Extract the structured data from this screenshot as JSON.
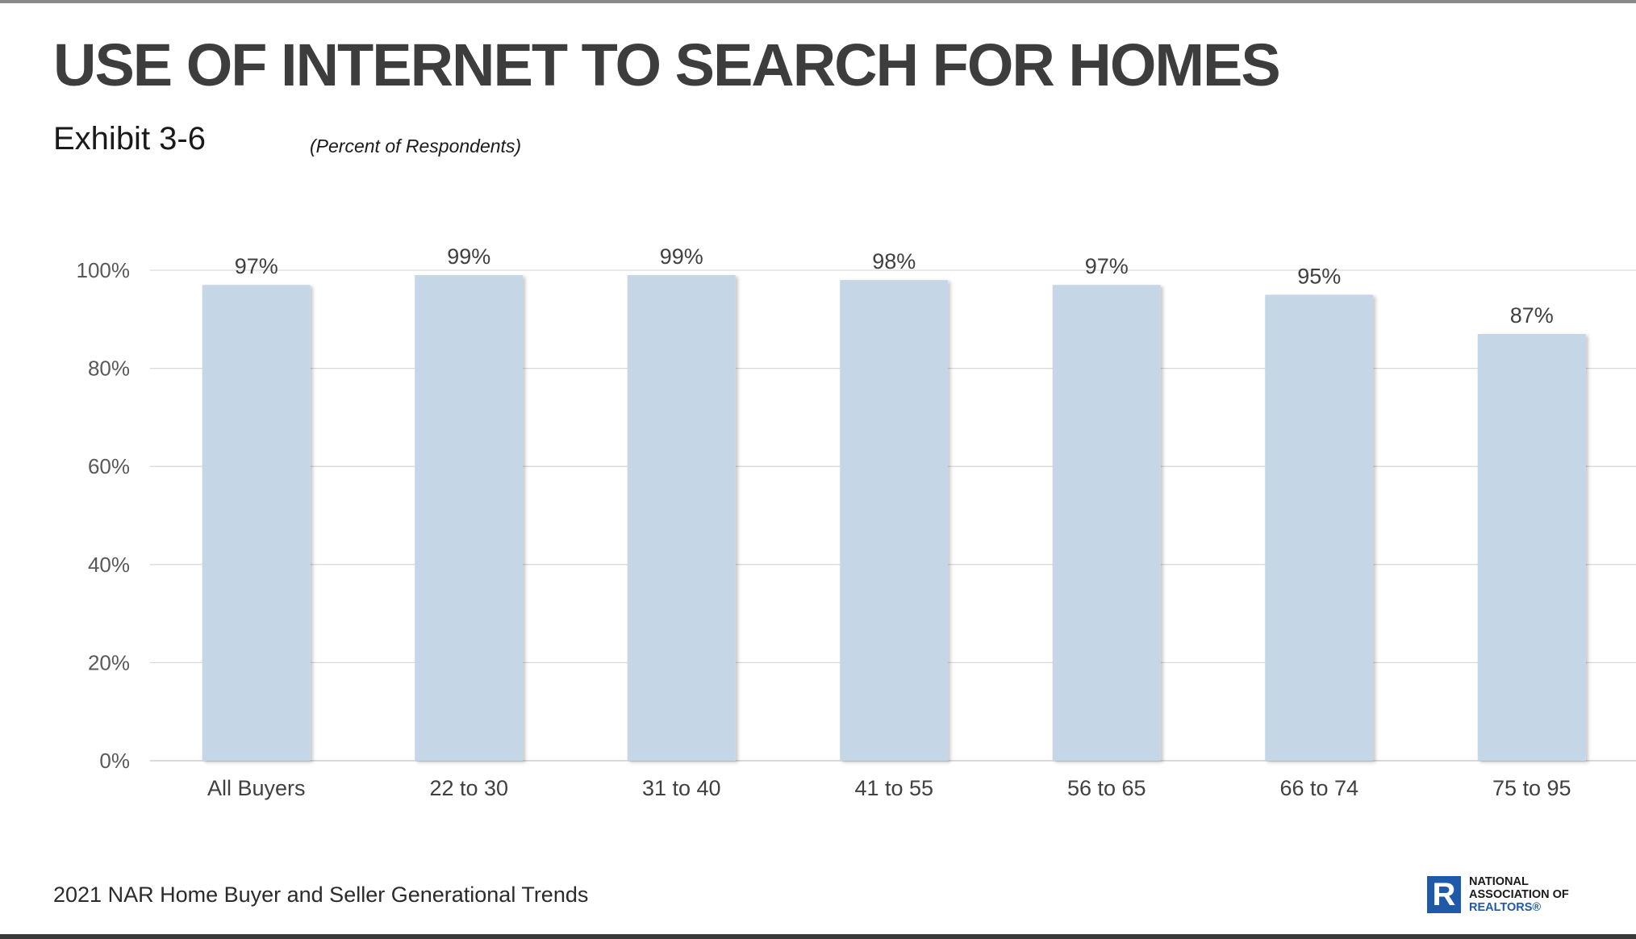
{
  "title": "USE OF INTERNET TO SEARCH FOR HOMES",
  "exhibit": "Exhibit 3-6",
  "subtitle": "(Percent of Respondents)",
  "footer": "2021 NAR Home Buyer and Seller Generational Trends",
  "logo": {
    "mark": "R",
    "line1": "NATIONAL",
    "line2": "ASSOCIATION OF",
    "line3": "REALTORS®",
    "color": "#1f5aa8"
  },
  "colors": {
    "bar": "#c5d6e7",
    "grid": "#d9d9d9",
    "axis_text": "#595959",
    "label_text": "#404040"
  },
  "chart_data": {
    "type": "bar",
    "title": "USE OF INTERNET TO SEARCH FOR HOMES",
    "categories": [
      "All Buyers",
      "22 to 30",
      "31 to 40",
      "41 to 55",
      "56 to 65",
      "66 to 74",
      "75 to 95"
    ],
    "values": [
      97,
      99,
      99,
      98,
      97,
      95,
      87
    ],
    "value_labels": [
      "97%",
      "99%",
      "99%",
      "98%",
      "97%",
      "95%",
      "87%"
    ],
    "y_ticks": [
      0,
      20,
      40,
      60,
      80,
      100
    ],
    "y_tick_labels": [
      "0%",
      "20%",
      "40%",
      "60%",
      "80%",
      "100%"
    ],
    "ylim": [
      0,
      100
    ],
    "xlabel": "",
    "ylabel": "",
    "grid": true,
    "legend": "none"
  }
}
